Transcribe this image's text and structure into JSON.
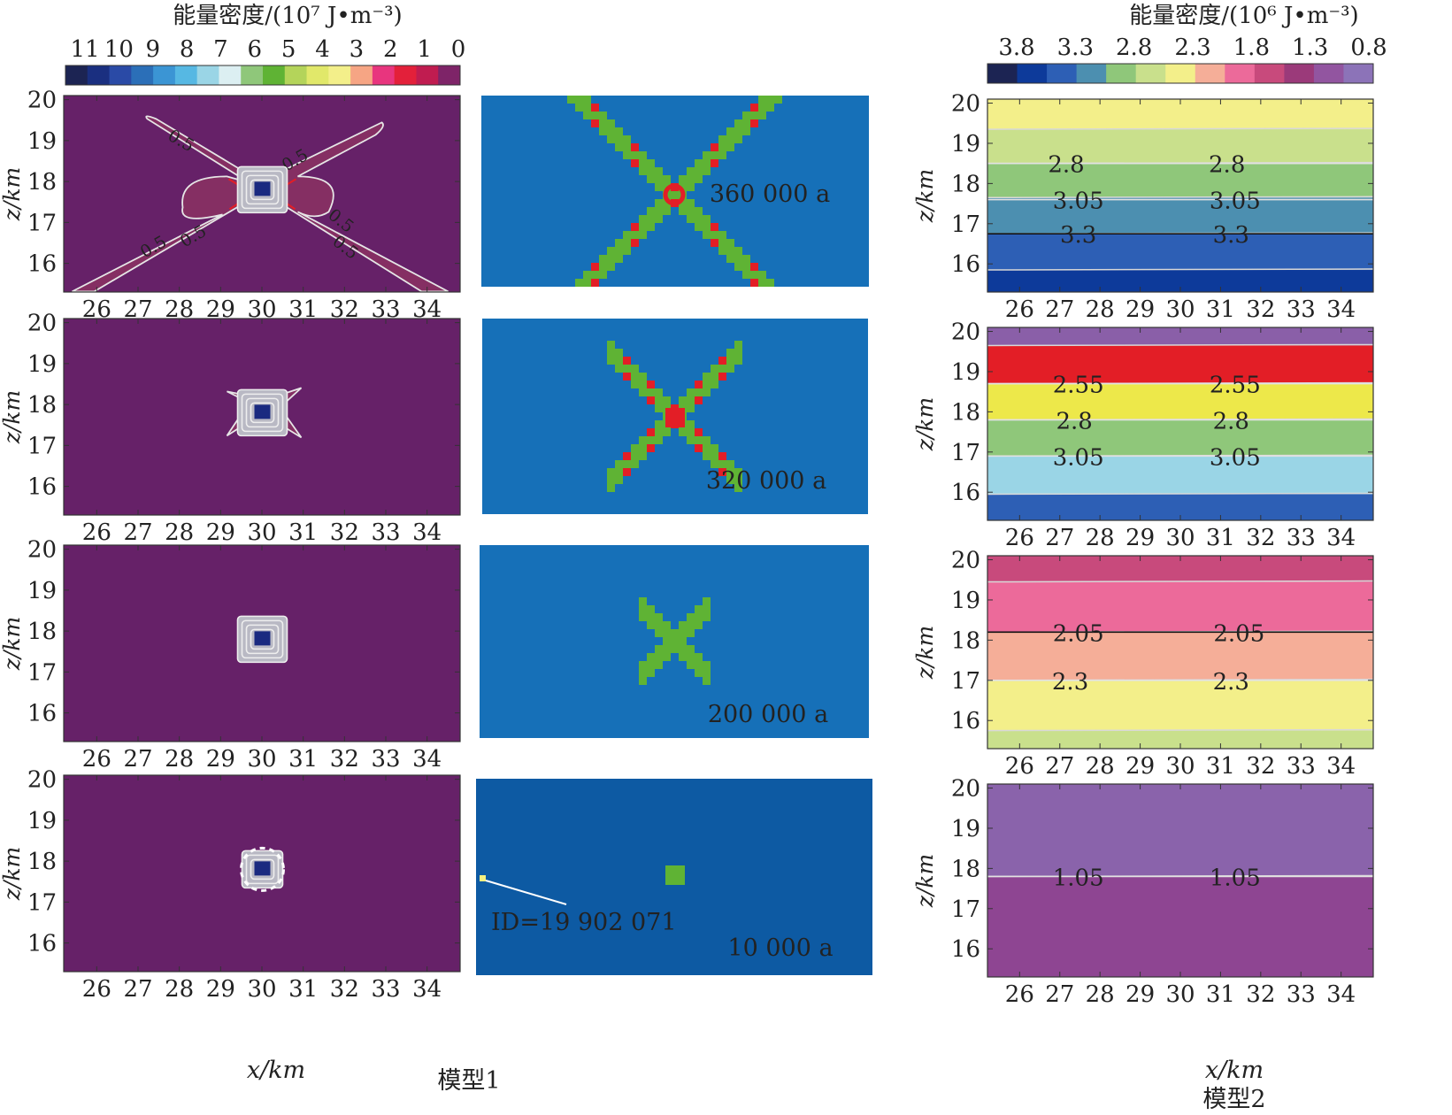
{
  "colors": {
    "m1_bg": "#662168",
    "m1_lobe": "#852f63",
    "m1_core": "#1a2a80",
    "m1_contour": "#e6e6e6",
    "m1_red": "#e31e26",
    "cell_bg": "#1670b8",
    "cell_bg_last": "#0d5aa3",
    "cell_green": "#5fb334",
    "cell_red": "#e31e26",
    "cell_marker": "#f5f080",
    "white": "#ffffff",
    "ink": "#222222"
  },
  "model1": {
    "colorbar": {
      "title": "能量密度/(10⁷ J•m⁻³)",
      "ticks": [
        "11",
        "10",
        "9",
        "8",
        "7",
        "6",
        "5",
        "4",
        "3",
        "2",
        "1",
        "0"
      ],
      "colors": [
        "#1c2453",
        "#1a2f80",
        "#2a4aa6",
        "#2b6fb8",
        "#3b95d4",
        "#56b8e3",
        "#9ad5e6",
        "#dceff2",
        "#8fc77a",
        "#5fb334",
        "#b4d45a",
        "#e1e86a",
        "#f3ef8a",
        "#f6a584",
        "#e8357e",
        "#e3203a",
        "#c01c50",
        "#7e2468"
      ]
    },
    "x_axis_label": "x/km",
    "y_axis_label": "z/km",
    "caption": "模型1",
    "contour_label": "0.5",
    "panels_note": "four energy-density panels, model 1"
  },
  "cells": {
    "time_labels": [
      "360 000 a",
      "320 000 a",
      "200 000 a",
      "10 000 a"
    ],
    "id_label": "ID=19 902 071"
  },
  "model2": {
    "colorbar": {
      "title": "能量密度/(10⁶ J•m⁻³)",
      "ticks": [
        "3.8",
        "3.3",
        "2.8",
        "2.3",
        "1.8",
        "1.3",
        "0.8"
      ],
      "colors": [
        "#1c2453",
        "#0d3a9a",
        "#2d5fb5",
        "#4c8fb0",
        "#8fc77a",
        "#c9e08c",
        "#f3ef8a",
        "#f5ae98",
        "#ec6a9a",
        "#c84a7c",
        "#9b3a7a",
        "#9255a0",
        "#8c73b8"
      ]
    },
    "x_axis_label": "x/km",
    "y_axis_label": "z/km",
    "caption": "模型2"
  },
  "chart_data": [
    {
      "type": "heatmap",
      "title": "模型1 (360 000 a)",
      "x": {
        "label": "x/km",
        "range": [
          25.2,
          34.8
        ],
        "ticks": [
          26,
          27,
          28,
          29,
          30,
          31,
          32,
          33,
          34
        ]
      },
      "y": {
        "label": "z/km",
        "range": [
          15.3,
          20.1
        ],
        "ticks": [
          16,
          17,
          18,
          19,
          20
        ]
      },
      "contour_labels": [
        "0.5",
        "0.5",
        "0.5",
        "0.5",
        "0.5",
        "0.5"
      ],
      "description": "X-shaped high energy band of 0.5 contour through (30,17.8)"
    },
    {
      "type": "heatmap",
      "title": "模型1 (320 000 a)",
      "x": {
        "label": "x/km",
        "range": [
          25.2,
          34.8
        ],
        "ticks": [
          26,
          27,
          28,
          29,
          30,
          31,
          32,
          33,
          34
        ]
      },
      "y": {
        "label": "z/km",
        "range": [
          15.3,
          20.1
        ],
        "ticks": [
          16,
          17,
          18,
          19,
          20
        ]
      }
    },
    {
      "type": "heatmap",
      "title": "模型1 (200 000 a)",
      "x": {
        "label": "x/km",
        "range": [
          25.2,
          34.8
        ],
        "ticks": [
          26,
          27,
          28,
          29,
          30,
          31,
          32,
          33,
          34
        ]
      },
      "y": {
        "label": "z/km",
        "range": [
          15.3,
          20.1
        ],
        "ticks": [
          16,
          17,
          18,
          19,
          20
        ]
      }
    },
    {
      "type": "heatmap",
      "title": "模型1 (10 000 a)",
      "x": {
        "label": "x/km",
        "range": [
          25.2,
          34.8
        ],
        "ticks": [
          26,
          27,
          28,
          29,
          30,
          31,
          32,
          33,
          34
        ]
      },
      "y": {
        "label": "z/km",
        "range": [
          15.3,
          20.1
        ],
        "ticks": [
          16,
          17,
          18,
          19,
          20
        ]
      }
    },
    {
      "type": "heatmap",
      "title": "模型2 (360 000 a)",
      "x": {
        "label": "x/km",
        "range": [
          25.2,
          34.8
        ],
        "ticks": [
          26,
          27,
          28,
          29,
          30,
          31,
          32,
          33,
          34
        ]
      },
      "y": {
        "label": "z/km",
        "range": [
          15.3,
          20.1
        ],
        "ticks": [
          16,
          17,
          18,
          19,
          20
        ]
      },
      "bands": [
        {
          "from": 19.35,
          "to": 20.1,
          "color": "#f3ef8a"
        },
        {
          "from": 18.5,
          "to": 19.35,
          "color": "#c9e08c"
        },
        {
          "from": 17.65,
          "to": 18.5,
          "color": "#8fc77a"
        },
        {
          "from": 16.75,
          "to": 17.65,
          "color": "#4c8fb0"
        },
        {
          "from": 15.85,
          "to": 16.75,
          "color": "#2d5fb5"
        },
        {
          "from": 15.3,
          "to": 15.85,
          "color": "#0d3a9a"
        }
      ],
      "contours": [
        {
          "value": "2.8",
          "z": 18.5,
          "label_x": [
            26.5,
            30.5
          ]
        },
        {
          "value": "3.05",
          "z": 17.6,
          "label_x": [
            26.8,
            30.7
          ]
        },
        {
          "value": "3.3",
          "z": 16.75,
          "label_x": [
            26.8,
            30.6
          ]
        }
      ]
    },
    {
      "type": "heatmap",
      "title": "模型2 (320 000 a)",
      "x": {
        "label": "x/km",
        "range": [
          25.2,
          34.8
        ],
        "ticks": [
          26,
          27,
          28,
          29,
          30,
          31,
          32,
          33,
          34
        ]
      },
      "y": {
        "label": "z/km",
        "range": [
          15.3,
          20.1
        ],
        "ticks": [
          16,
          17,
          18,
          19,
          20
        ]
      },
      "bands": [
        {
          "from": 19.65,
          "to": 20.1,
          "color": "#8a5fa8"
        },
        {
          "from": 18.7,
          "to": 19.65,
          "color": "#e31e26"
        },
        {
          "from": 17.8,
          "to": 18.7,
          "color": "#ede84a"
        },
        {
          "from": 16.9,
          "to": 17.8,
          "color": "#8fc77a"
        },
        {
          "from": 15.95,
          "to": 16.9,
          "color": "#9ad5e6"
        },
        {
          "from": 15.3,
          "to": 15.95,
          "color": "#2d5fb5"
        }
      ],
      "contours": [
        {
          "value": "2.55",
          "z": 18.7,
          "label_x": [
            26.8,
            30.7
          ]
        },
        {
          "value": "2.8",
          "z": 17.8,
          "label_x": [
            26.7,
            30.6
          ]
        },
        {
          "value": "3.05",
          "z": 16.9,
          "label_x": [
            26.8,
            30.7
          ]
        }
      ]
    },
    {
      "type": "heatmap",
      "title": "模型2 (200 000 a)",
      "x": {
        "label": "x/km",
        "range": [
          25.2,
          34.8
        ],
        "ticks": [
          26,
          27,
          28,
          29,
          30,
          31,
          32,
          33,
          34
        ]
      },
      "y": {
        "label": "z/km",
        "range": [
          15.3,
          20.1
        ],
        "ticks": [
          16,
          17,
          18,
          19,
          20
        ]
      },
      "bands": [
        {
          "from": 19.45,
          "to": 20.1,
          "color": "#c84a7c"
        },
        {
          "from": 18.2,
          "to": 19.45,
          "color": "#ec6a9a"
        },
        {
          "from": 17.0,
          "to": 18.2,
          "color": "#f5ae98"
        },
        {
          "from": 15.75,
          "to": 17.0,
          "color": "#f3ef8a"
        },
        {
          "from": 15.3,
          "to": 15.75,
          "color": "#c9e08c"
        }
      ],
      "contours": [
        {
          "value": "2.05",
          "z": 18.2,
          "label_x": [
            26.8,
            30.8
          ]
        },
        {
          "value": "2.3",
          "z": 17.0,
          "label_x": [
            26.6,
            30.6
          ]
        }
      ]
    },
    {
      "type": "heatmap",
      "title": "模型2 (10 000 a)",
      "x": {
        "label": "x/km",
        "range": [
          25.2,
          34.8
        ],
        "ticks": [
          26,
          27,
          28,
          29,
          30,
          31,
          32,
          33,
          34
        ]
      },
      "y": {
        "label": "z/km",
        "range": [
          15.3,
          20.1
        ],
        "ticks": [
          16,
          17,
          18,
          19,
          20
        ]
      },
      "bands": [
        {
          "from": 17.8,
          "to": 20.1,
          "color": "#8a63ab"
        },
        {
          "from": 15.3,
          "to": 17.8,
          "color": "#8e4592"
        }
      ],
      "contours": [
        {
          "value": "1.05",
          "z": 17.8,
          "label_x": [
            26.8,
            30.7
          ]
        }
      ]
    }
  ]
}
